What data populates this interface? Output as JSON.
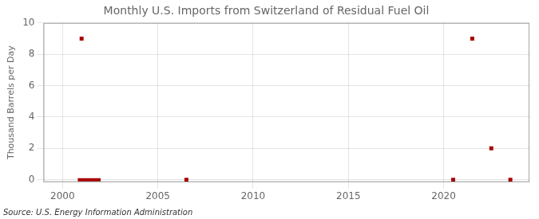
{
  "chart_data": {
    "type": "scatter",
    "title": "Monthly U.S. Imports from Switzerland of Residual Fuel Oil",
    "y_label": "Thousand Barrels per Day",
    "annotation": "Source: U.S. Energy Information Administration",
    "series": [
      {
        "type": "scatter",
        "marker": "square",
        "color": "#aa0000",
        "x": [
          2001.0,
          2006.5,
          2020.5,
          2021.5,
          2022.5,
          2023.5
        ],
        "values": [
          9.0,
          0.0,
          0.0,
          9.0,
          2.0,
          0.0
        ]
      },
      {
        "type": "line",
        "color": "#aa0000",
        "x": [
          2000.8,
          2002.0
        ],
        "values": [
          0.0,
          0.0
        ]
      }
    ],
    "xlim": [
      1999.0,
      2024.5
    ],
    "ylim": [
      -0.15,
      10
    ],
    "xticks": [
      2000,
      2005,
      2010,
      2015,
      2020
    ],
    "yticks": [
      0,
      2,
      4,
      6,
      8,
      10
    ],
    "grid": true
  }
}
